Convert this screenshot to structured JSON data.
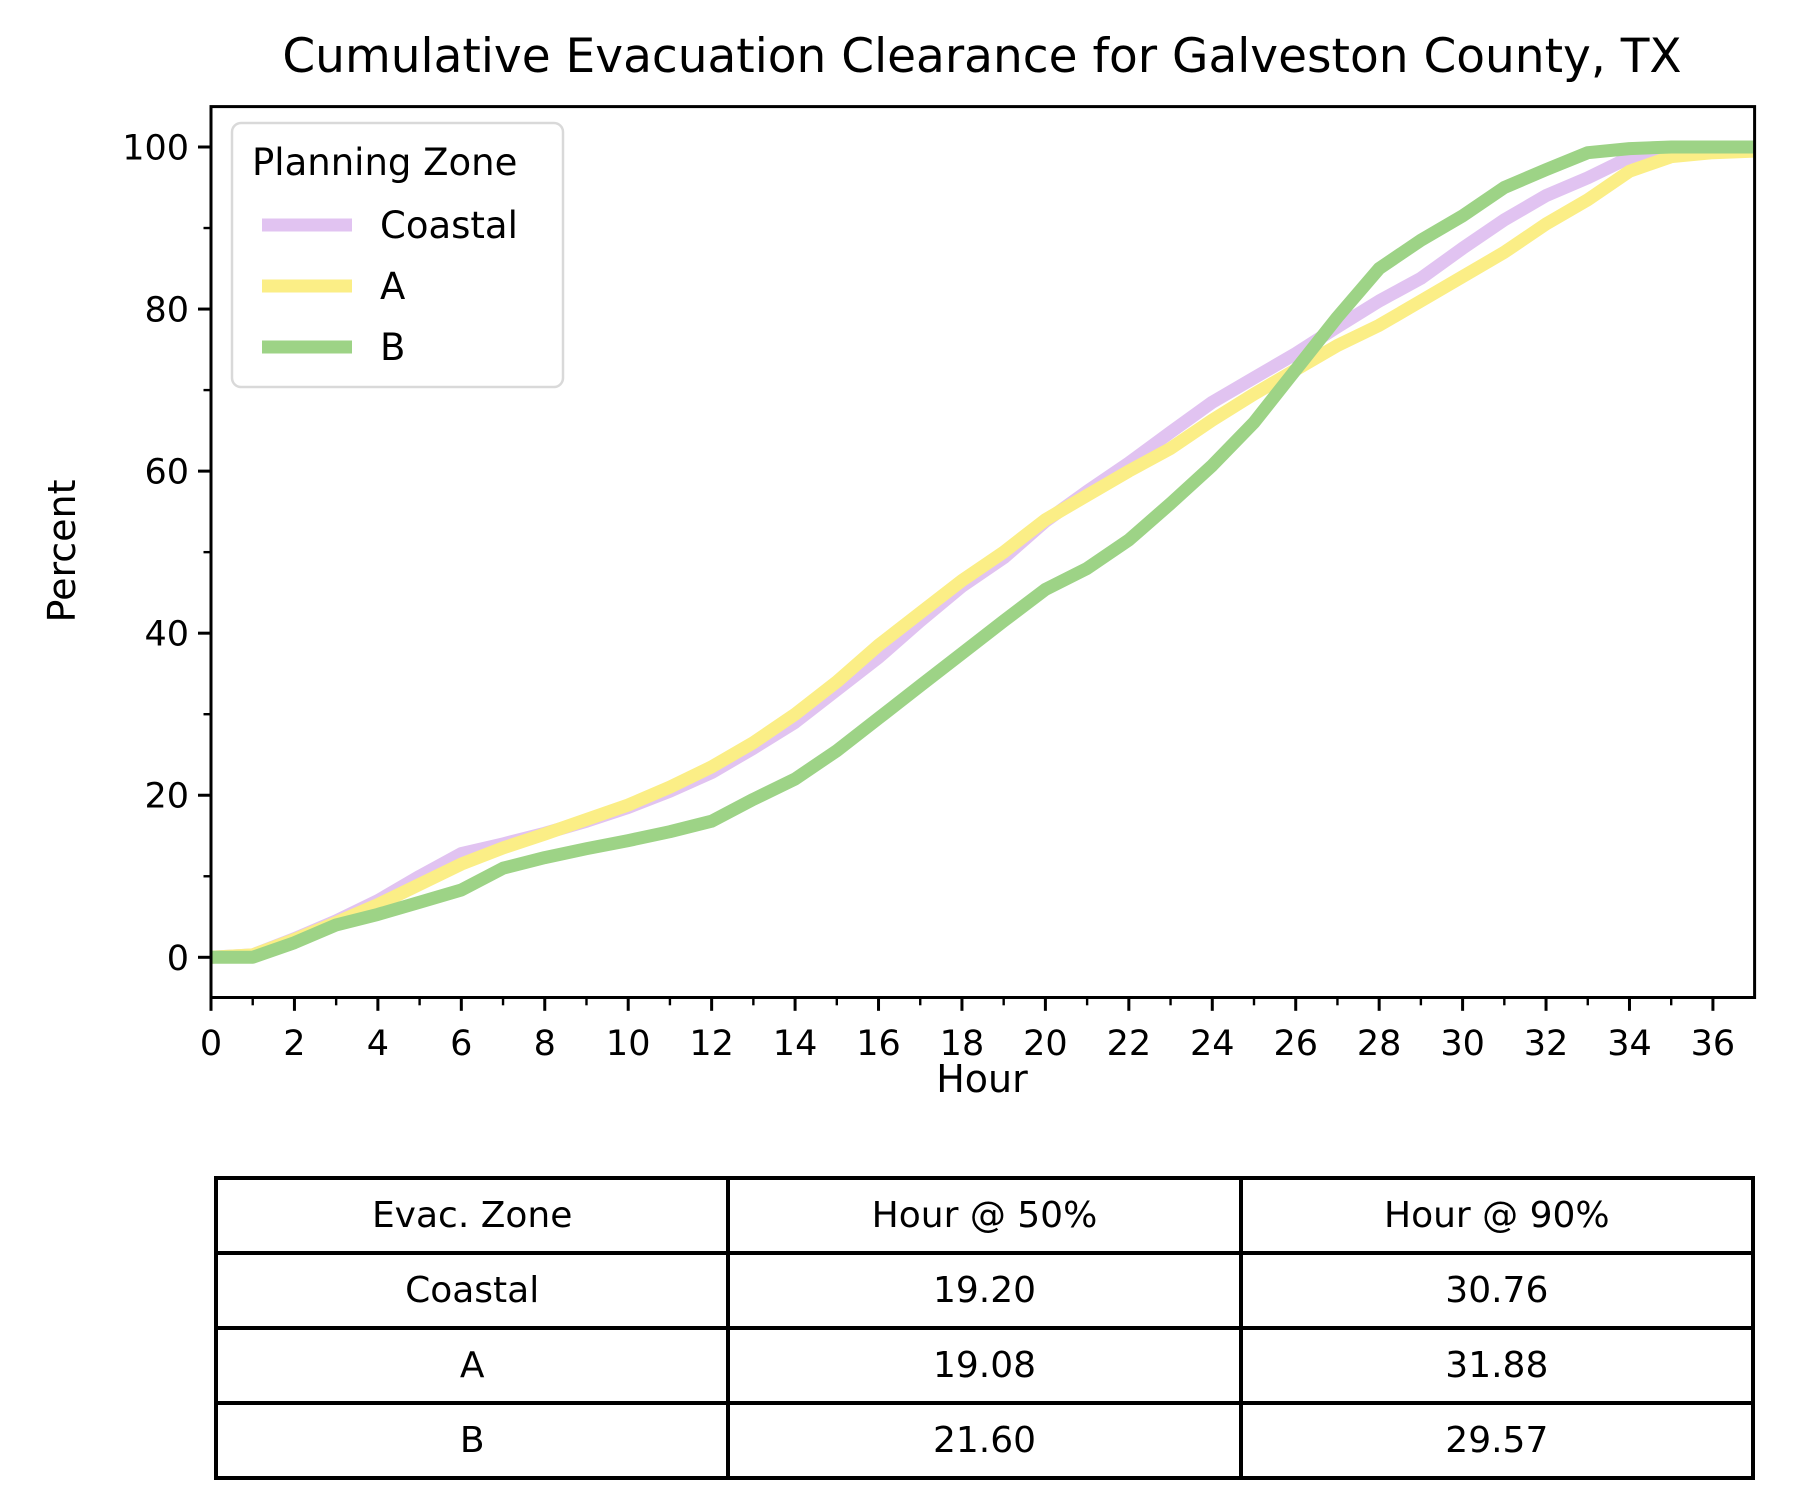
{
  "chart_data": {
    "type": "line",
    "title": "Cumulative Evacuation Clearance for Galveston County, TX",
    "xlabel": "Hour",
    "ylabel": "Percent",
    "xlim": [
      0,
      37
    ],
    "ylim": [
      -5,
      105
    ],
    "x_ticks": [
      0,
      2,
      4,
      6,
      8,
      10,
      12,
      14,
      16,
      18,
      20,
      22,
      24,
      26,
      28,
      30,
      32,
      34,
      36
    ],
    "y_ticks": [
      0,
      20,
      40,
      60,
      80,
      100
    ],
    "grid": "off",
    "legend_title": "Planning Zone",
    "legend_position": "upper left",
    "x": [
      0,
      1,
      2,
      3,
      4,
      5,
      6,
      7,
      8,
      9,
      10,
      11,
      12,
      13,
      14,
      15,
      16,
      17,
      18,
      19,
      20,
      21,
      22,
      23,
      24,
      25,
      26,
      27,
      28,
      29,
      30,
      31,
      32,
      33,
      34,
      35,
      36,
      37
    ],
    "series": [
      {
        "name": "Coastal",
        "color": "#e1c3f1",
        "values": [
          0,
          0.3,
          2.3,
          4.5,
          7.0,
          10.0,
          12.8,
          14.0,
          15.3,
          16.8,
          18.5,
          20.5,
          22.8,
          25.8,
          29.0,
          33.0,
          37.0,
          41.5,
          45.8,
          49.3,
          53.8,
          57.5,
          61.0,
          64.8,
          68.5,
          71.5,
          74.5,
          77.8,
          81.0,
          83.8,
          87.5,
          91.0,
          94.0,
          96.2,
          98.7,
          99.5,
          99.6,
          99.6
        ]
      },
      {
        "name": "A",
        "color": "#fbee86",
        "values": [
          0,
          0.3,
          2.2,
          4.3,
          6.5,
          9.0,
          11.5,
          13.5,
          15.2,
          17.0,
          18.8,
          21.0,
          23.5,
          26.5,
          30.0,
          34.0,
          38.5,
          42.5,
          46.5,
          50.0,
          54.0,
          57.0,
          60.0,
          62.8,
          66.3,
          69.5,
          72.5,
          75.5,
          78.0,
          81.0,
          84.0,
          87.0,
          90.5,
          93.5,
          97.0,
          98.8,
          99.3,
          99.5
        ]
      },
      {
        "name": "B",
        "color": "#9dd386",
        "values": [
          0,
          0.0,
          1.8,
          4.0,
          5.3,
          6.8,
          8.3,
          11.0,
          12.3,
          13.4,
          14.4,
          15.5,
          16.8,
          19.5,
          22.0,
          25.5,
          29.5,
          33.5,
          37.5,
          41.5,
          45.4,
          48.0,
          51.5,
          56.0,
          60.7,
          66.0,
          72.5,
          79.0,
          85.0,
          88.5,
          91.5,
          95.0,
          97.2,
          99.3,
          99.8,
          100,
          100,
          100
        ]
      }
    ]
  },
  "table": {
    "headers": [
      "Evac. Zone",
      "Hour @ 50%",
      "Hour @ 90%"
    ],
    "rows": [
      [
        "Coastal",
        "19.20",
        "30.76"
      ],
      [
        "A",
        "19.08",
        "31.88"
      ],
      [
        "B",
        "21.60",
        "29.57"
      ]
    ]
  }
}
